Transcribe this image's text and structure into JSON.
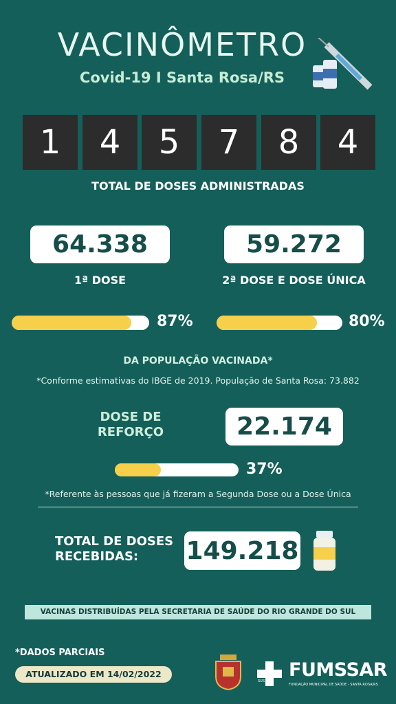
{
  "header": {
    "title": "VACINÔMETRO",
    "subtitle": "Covid-19 I Santa Rosa/RS"
  },
  "counter": {
    "digits": [
      "1",
      "4",
      "5",
      "7",
      "8",
      "4"
    ],
    "label": "TOTAL DE DOSES ADMINISTRADAS"
  },
  "first_dose": {
    "value": "64.338",
    "label": "1ª DOSE",
    "percent": {
      "value": 87,
      "label": "87%"
    }
  },
  "second_dose": {
    "value": "59.272",
    "label": "2ª DOSE E DOSE ÚNICA",
    "percent": {
      "value": 80,
      "label": "80%"
    }
  },
  "population_label": "DA POPULAÇÃO VACINADA*",
  "population_note": "*Conforme estimativas do IBGE de 2019. População de Santa Rosa: 73.882",
  "booster": {
    "label_line1": "DOSE DE",
    "label_line2": "REFORÇO",
    "value": "22.174",
    "percent": {
      "value": 37,
      "label": "37%"
    },
    "note": "*Referente às pessoas que já fizeram a Segunda Dose ou a Dose Única"
  },
  "received": {
    "label_line1": "TOTAL DE DOSES",
    "label_line2": "RECEBIDAS:",
    "value": "149.218"
  },
  "banner": "VACINAS DISTRIBUÍDAS PELA SECRETARIA DE SAÚDE DO RIO GRANDE DO SUL",
  "footer": {
    "partial": "*DADOS PARCIAIS",
    "updated": "ATUALIZADO EM 14/02/2022",
    "logo": "FUMSSAR",
    "logo_subtitle": "FUNDAÇÃO MUNICIPAL DE SAÚDE - SANTA ROSA/RS",
    "sus": "SUS"
  }
}
